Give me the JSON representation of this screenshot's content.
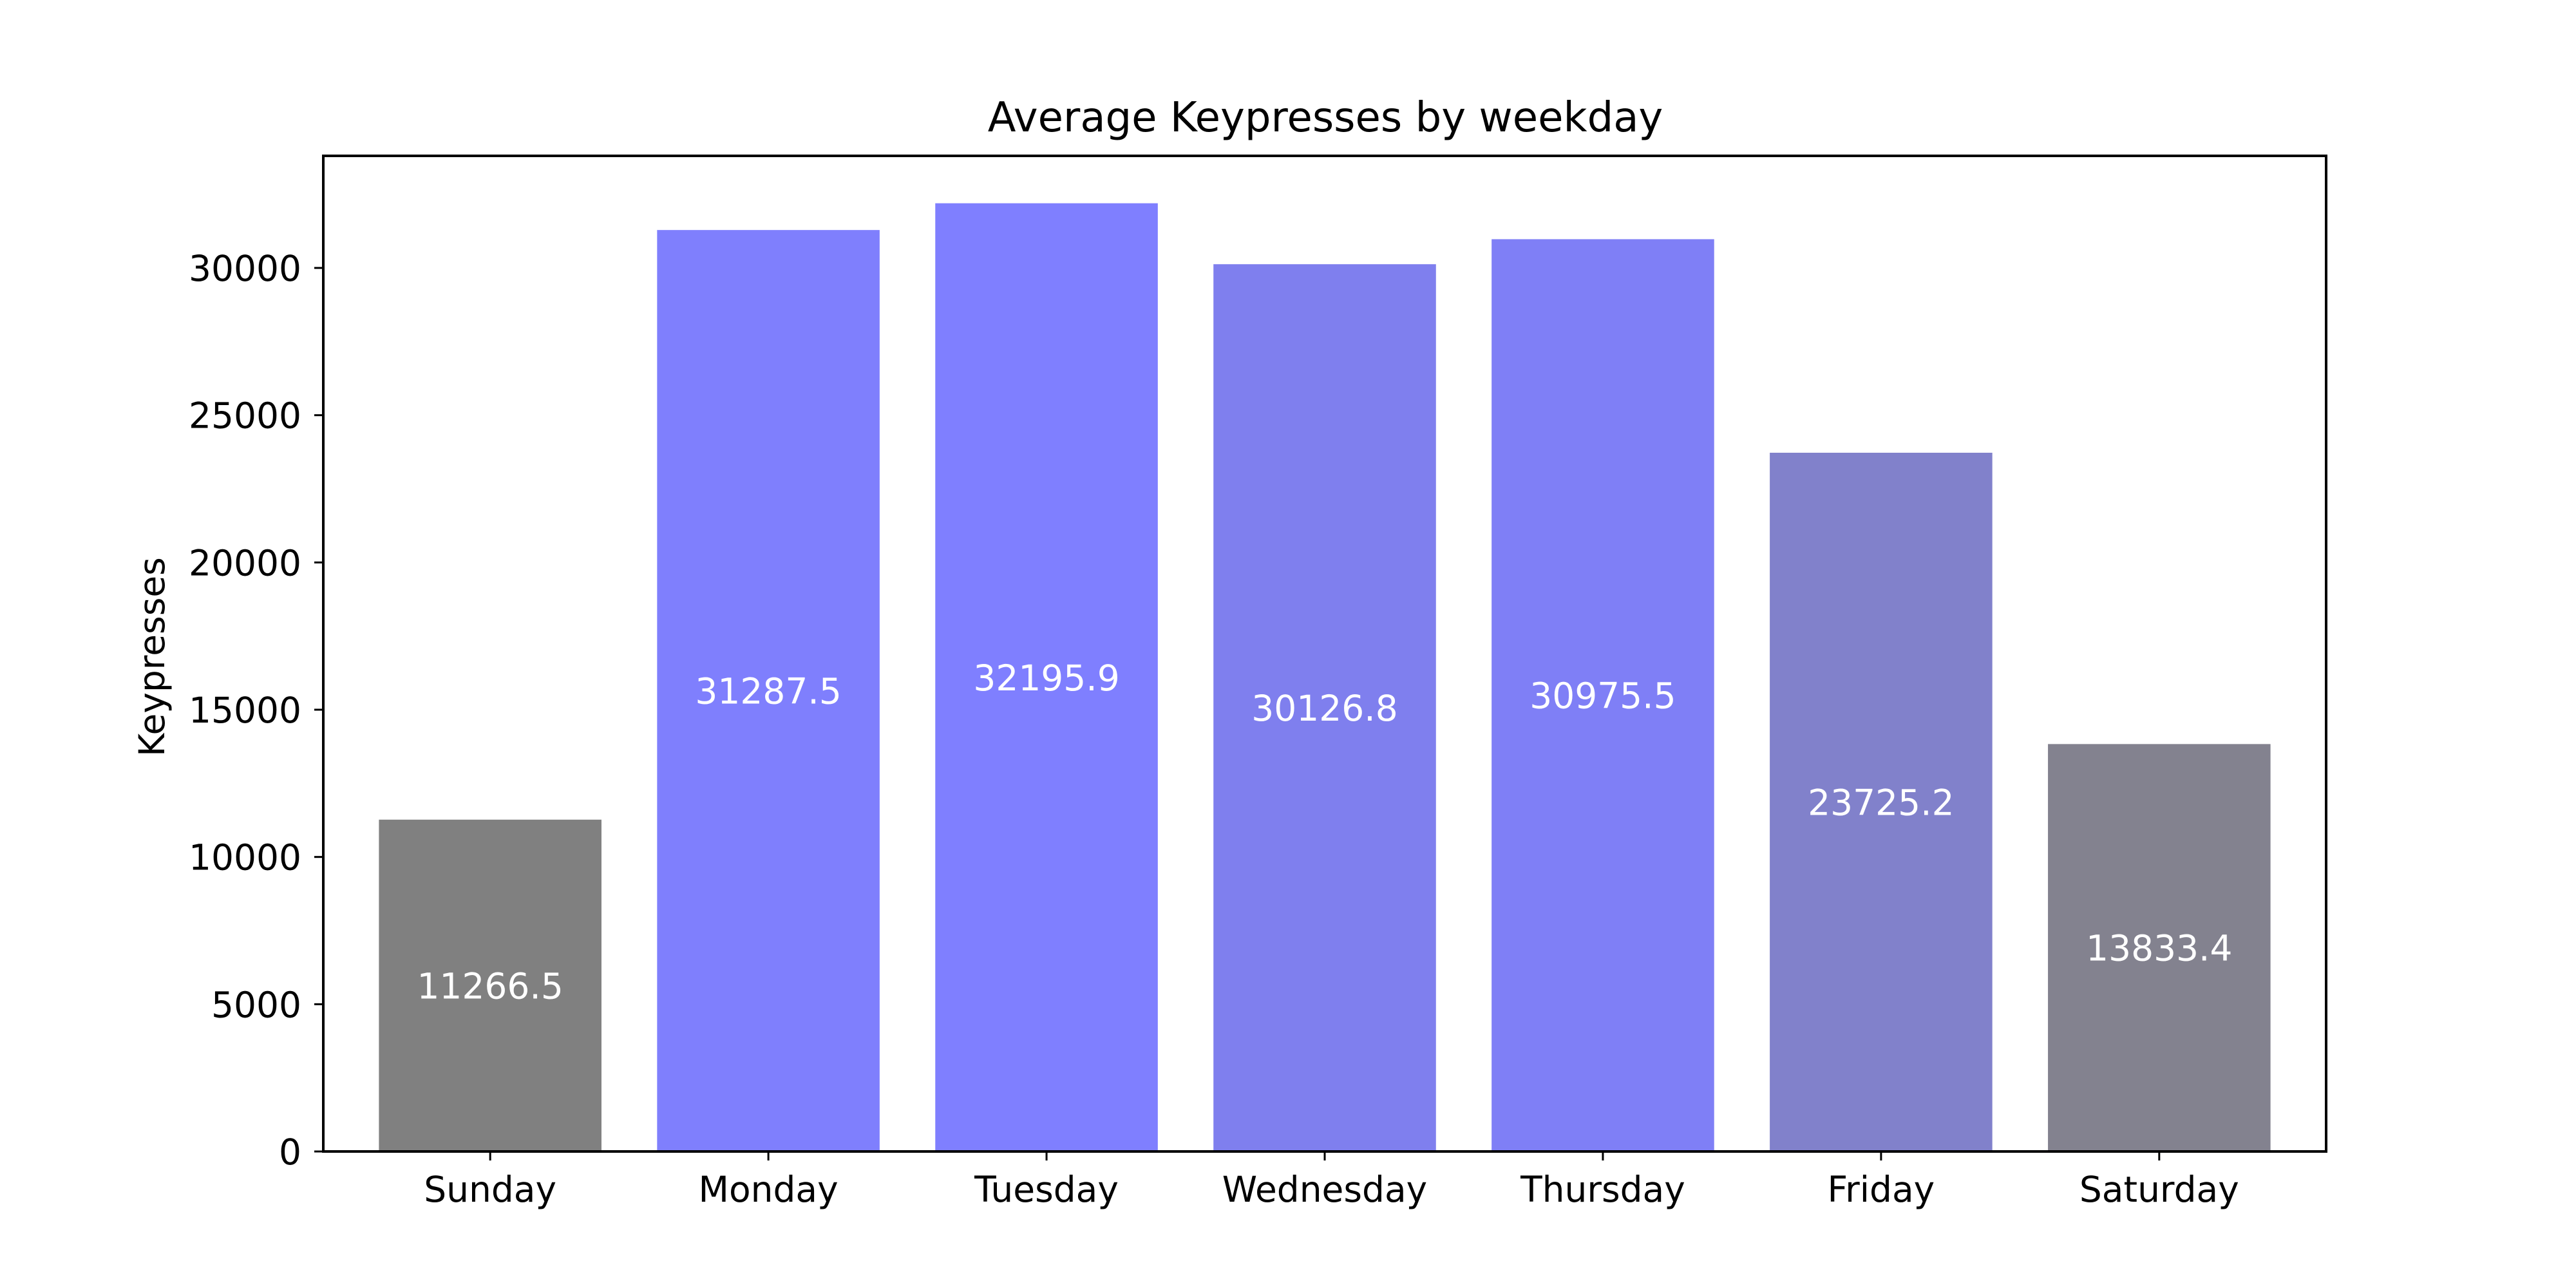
{
  "chart_data": {
    "type": "bar",
    "title": "Average Keypresses by weekday",
    "xlabel": "",
    "ylabel": "Keypresses",
    "categories": [
      "Sunday",
      "Monday",
      "Tuesday",
      "Wednesday",
      "Thursday",
      "Friday",
      "Saturday"
    ],
    "values": [
      11266.5,
      31287.5,
      32195.9,
      30126.8,
      30975.5,
      23725.2,
      13833.4
    ],
    "value_labels": [
      "11266.5",
      "31287.5",
      "32195.9",
      "30126.8",
      "30975.5",
      "23725.2",
      "13833.4"
    ],
    "colors": [
      "#808080",
      "#7f7ffd",
      "#7f7fff",
      "#7f7fee",
      "#7f7ff6",
      "#8181cb",
      "#83828f"
    ],
    "yticks": [
      0,
      5000,
      10000,
      15000,
      20000,
      25000,
      30000
    ],
    "ytick_labels": [
      "0",
      "5000",
      "10000",
      "15000",
      "20000",
      "25000",
      "30000"
    ],
    "ylim": [
      0,
      33805.7
    ],
    "grid": false,
    "legend": "none"
  }
}
